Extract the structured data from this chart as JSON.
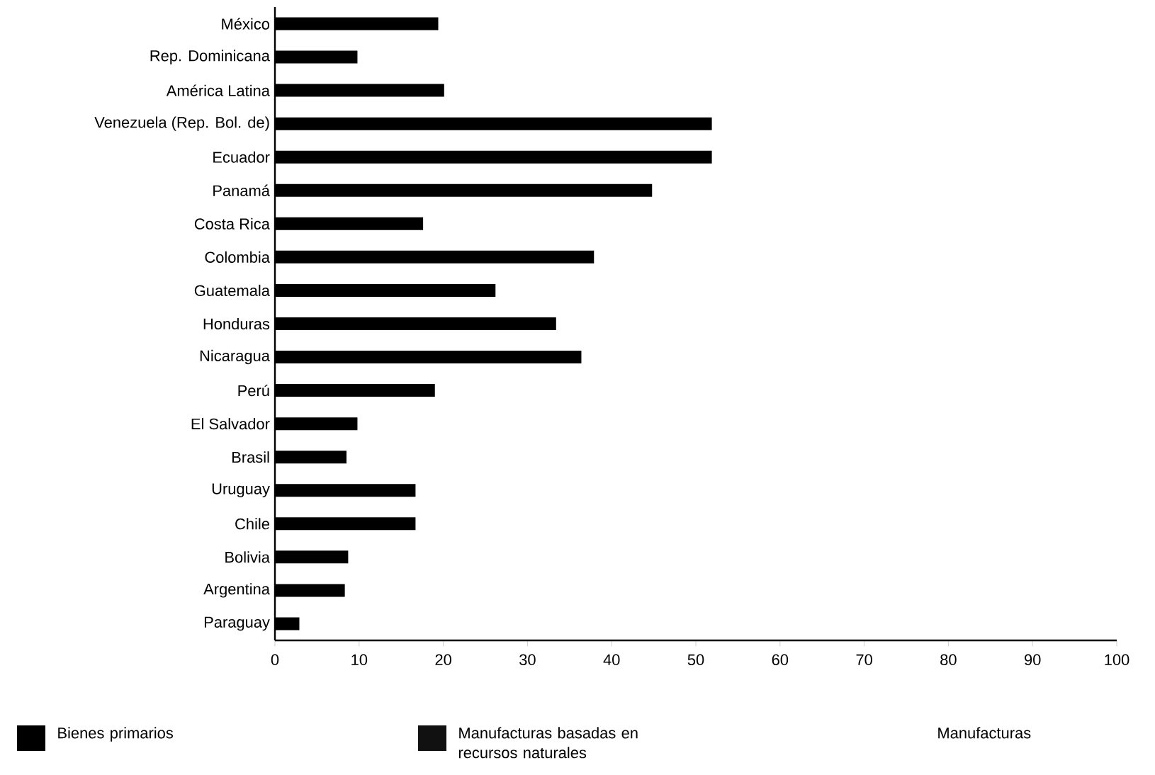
{
  "chart_data": {
    "type": "bar",
    "orientation": "horizontal",
    "stacked": true,
    "categories": [
      "México",
      "Rep. Dominicana",
      "América Latina",
      "Venezuela (Rep. Bol. de)",
      "Ecuador",
      "Panamá",
      "Costa Rica",
      "Colombia",
      "Guatemala",
      "Honduras",
      "Nicaragua",
      "Perú",
      "El Salvador",
      "Brasil",
      "Uruguay",
      "Chile",
      "Bolivia",
      "Argentina",
      "Paraguay"
    ],
    "series": [
      {
        "name": "Bienes primarios",
        "color": "#000000",
        "values": [
          19.4,
          9.8,
          20.1,
          51.9,
          51.9,
          44.8,
          17.6,
          37.9,
          26.2,
          33.4,
          36.4,
          19.0,
          9.8,
          8.5,
          16.7,
          16.7,
          8.7,
          8.3,
          2.9
        ]
      },
      {
        "name": "Manufacturas basadas en recursos naturales",
        "color": "#111111",
        "values": [
          null,
          null,
          null,
          null,
          null,
          null,
          null,
          null,
          null,
          null,
          null,
          null,
          null,
          null,
          null,
          null,
          null,
          null,
          null
        ]
      },
      {
        "name": "Manufacturas",
        "values": [
          null,
          null,
          null,
          null,
          null,
          null,
          null,
          null,
          null,
          null,
          null,
          null,
          null,
          null,
          null,
          null,
          null,
          null,
          null
        ]
      }
    ],
    "xlim": [
      0,
      100
    ],
    "xticks": [
      0,
      10,
      20,
      30,
      40,
      50,
      60,
      70,
      80,
      90,
      100
    ],
    "legend": "bottom"
  }
}
